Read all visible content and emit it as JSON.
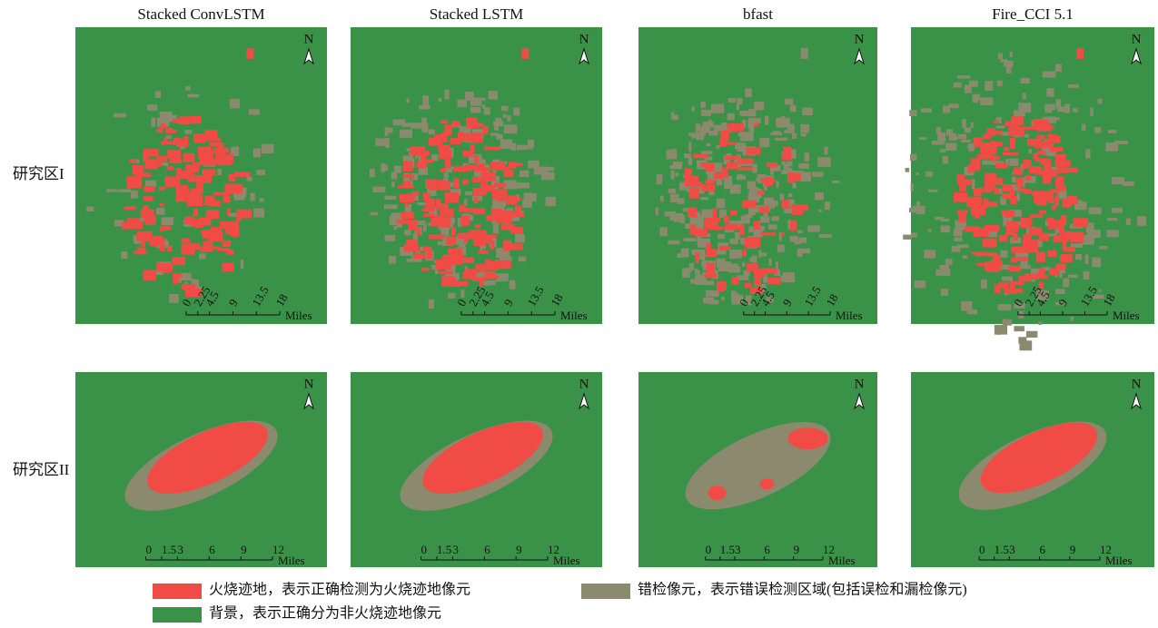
{
  "columns": [
    "Stacked ConvLSTM",
    "Stacked LSTM",
    "bfast",
    "Fire_CCI 5.1"
  ],
  "rows": [
    "研究区I",
    "研究区II"
  ],
  "north": "N",
  "units": "Miles",
  "scale_bars": [
    [
      "0",
      "2.25",
      "4.5",
      "9",
      "13.5",
      "18"
    ],
    [
      "0",
      "1.5",
      "3",
      "6",
      "9",
      "12"
    ]
  ],
  "legend": [
    {
      "label": "火烧迹地，表示正确检测为火烧迹地像元",
      "color": "#f04b44"
    },
    {
      "label": "错检像元，表示错误检测区域(包括误检和漏检像元)",
      "color": "#8b8a6e"
    },
    {
      "label": "背景，表示正确分为非火烧迹地像元",
      "color": "#3a9148"
    }
  ]
}
